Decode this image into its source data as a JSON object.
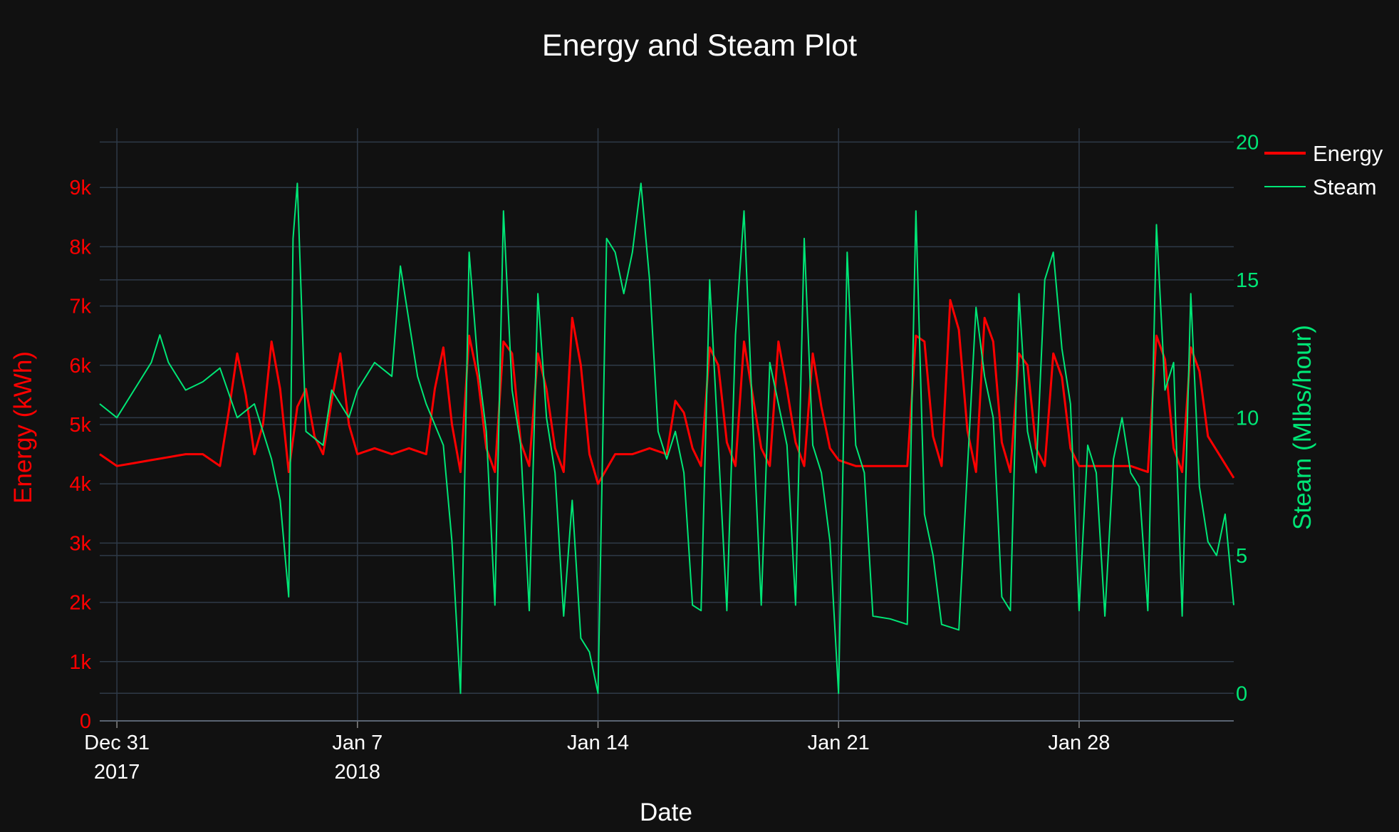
{
  "chart_data": {
    "type": "line",
    "title": "Energy and Steam Plot",
    "xlabel": "Date",
    "ylabel_left": "Energy (kWh)",
    "ylabel_right": "Steam (Mlbs/hour)",
    "x_ticks": [
      {
        "date": "2017-12-31",
        "label": "Dec 31",
        "sublabel": "2017"
      },
      {
        "date": "2018-01-07",
        "label": "Jan 7",
        "sublabel": "2018"
      },
      {
        "date": "2018-01-14",
        "label": "Jan 14",
        "sublabel": ""
      },
      {
        "date": "2018-01-21",
        "label": "Jan 21",
        "sublabel": ""
      },
      {
        "date": "2018-01-28",
        "label": "Jan 28",
        "sublabel": ""
      }
    ],
    "x_range": [
      "2017-12-30T12:00",
      "2018-02-01T12:00"
    ],
    "y_left_range": [
      0,
      10000
    ],
    "y_left_ticks": [
      {
        "value": 0,
        "label": "0"
      },
      {
        "value": 1000,
        "label": "1k"
      },
      {
        "value": 2000,
        "label": "2k"
      },
      {
        "value": 3000,
        "label": "3k"
      },
      {
        "value": 4000,
        "label": "4k"
      },
      {
        "value": 5000,
        "label": "5k"
      },
      {
        "value": 6000,
        "label": "6k"
      },
      {
        "value": 7000,
        "label": "7k"
      },
      {
        "value": 8000,
        "label": "8k"
      },
      {
        "value": 9000,
        "label": "9k"
      }
    ],
    "y_right_range": [
      -1,
      20.5
    ],
    "y_right_ticks": [
      {
        "value": 0,
        "label": "0"
      },
      {
        "value": 5,
        "label": "5"
      },
      {
        "value": 10,
        "label": "10"
      },
      {
        "value": 15,
        "label": "15"
      },
      {
        "value": 20,
        "label": "20"
      }
    ],
    "grid": true,
    "legend_position": "top-right",
    "series": [
      {
        "name": "Energy",
        "axis": "left",
        "color": "#ff0000",
        "points": [
          [
            "2017-12-30T12:00",
            4500
          ],
          [
            "2017-12-31T00:00",
            4300
          ],
          [
            "2017-12-31T12:00",
            4350
          ],
          [
            "2018-01-01T00:00",
            4400
          ],
          [
            "2018-01-01T12:00",
            4450
          ],
          [
            "2018-01-02T00:00",
            4500
          ],
          [
            "2018-01-02T12:00",
            4500
          ],
          [
            "2018-01-03T00:00",
            4300
          ],
          [
            "2018-01-03T06:00",
            5200
          ],
          [
            "2018-01-03T12:00",
            6200
          ],
          [
            "2018-01-03T18:00",
            5500
          ],
          [
            "2018-01-04T00:00",
            4500
          ],
          [
            "2018-01-04T06:00",
            5000
          ],
          [
            "2018-01-04T12:00",
            6400
          ],
          [
            "2018-01-04T18:00",
            5600
          ],
          [
            "2018-01-05T00:00",
            4200
          ],
          [
            "2018-01-05T06:00",
            5300
          ],
          [
            "2018-01-05T12:00",
            5600
          ],
          [
            "2018-01-05T18:00",
            4800
          ],
          [
            "2018-01-06T00:00",
            4500
          ],
          [
            "2018-01-06T06:00",
            5400
          ],
          [
            "2018-01-06T12:00",
            6200
          ],
          [
            "2018-01-06T18:00",
            5000
          ],
          [
            "2018-01-07T00:00",
            4500
          ],
          [
            "2018-01-07T12:00",
            4600
          ],
          [
            "2018-01-08T00:00",
            4500
          ],
          [
            "2018-01-08T12:00",
            4600
          ],
          [
            "2018-01-09T00:00",
            4500
          ],
          [
            "2018-01-09T06:00",
            5600
          ],
          [
            "2018-01-09T12:00",
            6300
          ],
          [
            "2018-01-09T18:00",
            5000
          ],
          [
            "2018-01-10T00:00",
            4200
          ],
          [
            "2018-01-10T06:00",
            6500
          ],
          [
            "2018-01-10T12:00",
            5800
          ],
          [
            "2018-01-10T18:00",
            4600
          ],
          [
            "2018-01-11T00:00",
            4200
          ],
          [
            "2018-01-11T06:00",
            6400
          ],
          [
            "2018-01-11T12:00",
            6200
          ],
          [
            "2018-01-11T18:00",
            4700
          ],
          [
            "2018-01-12T00:00",
            4300
          ],
          [
            "2018-01-12T06:00",
            6200
          ],
          [
            "2018-01-12T12:00",
            5600
          ],
          [
            "2018-01-12T18:00",
            4600
          ],
          [
            "2018-01-13T00:00",
            4200
          ],
          [
            "2018-01-13T06:00",
            6800
          ],
          [
            "2018-01-13T12:00",
            6000
          ],
          [
            "2018-01-13T18:00",
            4500
          ],
          [
            "2018-01-14T00:00",
            4000
          ],
          [
            "2018-01-14T12:00",
            4500
          ],
          [
            "2018-01-15T00:00",
            4500
          ],
          [
            "2018-01-15T12:00",
            4600
          ],
          [
            "2018-01-16T00:00",
            4500
          ],
          [
            "2018-01-16T06:00",
            5400
          ],
          [
            "2018-01-16T12:00",
            5200
          ],
          [
            "2018-01-16T18:00",
            4600
          ],
          [
            "2018-01-17T00:00",
            4300
          ],
          [
            "2018-01-17T06:00",
            6300
          ],
          [
            "2018-01-17T12:00",
            6000
          ],
          [
            "2018-01-17T18:00",
            4700
          ],
          [
            "2018-01-18T00:00",
            4300
          ],
          [
            "2018-01-18T06:00",
            6400
          ],
          [
            "2018-01-18T12:00",
            5500
          ],
          [
            "2018-01-18T18:00",
            4600
          ],
          [
            "2018-01-19T00:00",
            4300
          ],
          [
            "2018-01-19T06:00",
            6400
          ],
          [
            "2018-01-19T12:00",
            5600
          ],
          [
            "2018-01-19T18:00",
            4700
          ],
          [
            "2018-01-20T00:00",
            4300
          ],
          [
            "2018-01-20T06:00",
            6200
          ],
          [
            "2018-01-20T12:00",
            5300
          ],
          [
            "2018-01-20T18:00",
            4600
          ],
          [
            "2018-01-21T00:00",
            4400
          ],
          [
            "2018-01-21T12:00",
            4300
          ],
          [
            "2018-01-22T00:00",
            4300
          ],
          [
            "2018-01-22T12:00",
            4300
          ],
          [
            "2018-01-23T00:00",
            4300
          ],
          [
            "2018-01-23T06:00",
            6500
          ],
          [
            "2018-01-23T12:00",
            6400
          ],
          [
            "2018-01-23T18:00",
            4800
          ],
          [
            "2018-01-24T00:00",
            4300
          ],
          [
            "2018-01-24T06:00",
            7100
          ],
          [
            "2018-01-24T12:00",
            6600
          ],
          [
            "2018-01-24T18:00",
            4900
          ],
          [
            "2018-01-25T00:00",
            4200
          ],
          [
            "2018-01-25T06:00",
            6800
          ],
          [
            "2018-01-25T12:00",
            6400
          ],
          [
            "2018-01-25T18:00",
            4700
          ],
          [
            "2018-01-26T00:00",
            4200
          ],
          [
            "2018-01-26T06:00",
            6200
          ],
          [
            "2018-01-26T12:00",
            6000
          ],
          [
            "2018-01-26T18:00",
            4600
          ],
          [
            "2018-01-27T00:00",
            4300
          ],
          [
            "2018-01-27T06:00",
            6200
          ],
          [
            "2018-01-27T12:00",
            5800
          ],
          [
            "2018-01-27T18:00",
            4600
          ],
          [
            "2018-01-28T00:00",
            4300
          ],
          [
            "2018-01-28T12:00",
            4300
          ],
          [
            "2018-01-29T00:00",
            4300
          ],
          [
            "2018-01-29T12:00",
            4300
          ],
          [
            "2018-01-30T00:00",
            4200
          ],
          [
            "2018-01-30T06:00",
            6500
          ],
          [
            "2018-01-30T12:00",
            6100
          ],
          [
            "2018-01-30T18:00",
            4600
          ],
          [
            "2018-01-31T00:00",
            4200
          ],
          [
            "2018-01-31T06:00",
            6300
          ],
          [
            "2018-01-31T12:00",
            5900
          ],
          [
            "2018-01-31T18:00",
            4800
          ],
          [
            "2018-02-01T12:00",
            4100
          ]
        ]
      },
      {
        "name": "Steam",
        "axis": "right",
        "color": "#00e676",
        "points": [
          [
            "2017-12-30T12:00",
            10.5
          ],
          [
            "2017-12-31T00:00",
            10.0
          ],
          [
            "2017-12-31T12:00",
            11.0
          ],
          [
            "2018-01-01T00:00",
            12.0
          ],
          [
            "2018-01-01T06:00",
            13.0
          ],
          [
            "2018-01-01T12:00",
            12.0
          ],
          [
            "2018-01-02T00:00",
            11.0
          ],
          [
            "2018-01-02T12:00",
            11.3
          ],
          [
            "2018-01-03T00:00",
            11.8
          ],
          [
            "2018-01-03T12:00",
            10.0
          ],
          [
            "2018-01-04T00:00",
            10.5
          ],
          [
            "2018-01-04T12:00",
            8.5
          ],
          [
            "2018-01-04T18:00",
            7.0
          ],
          [
            "2018-01-05T00:00",
            3.5
          ],
          [
            "2018-01-05T03:00",
            16.5
          ],
          [
            "2018-01-05T06:00",
            18.5
          ],
          [
            "2018-01-05T12:00",
            9.5
          ],
          [
            "2018-01-06T00:00",
            9.0
          ],
          [
            "2018-01-06T06:00",
            11.0
          ],
          [
            "2018-01-06T18:00",
            10.0
          ],
          [
            "2018-01-07T00:00",
            11.0
          ],
          [
            "2018-01-07T12:00",
            12.0
          ],
          [
            "2018-01-08T00:00",
            11.5
          ],
          [
            "2018-01-08T06:00",
            15.5
          ],
          [
            "2018-01-08T18:00",
            11.5
          ],
          [
            "2018-01-09T00:00",
            10.5
          ],
          [
            "2018-01-09T12:00",
            9.0
          ],
          [
            "2018-01-09T18:00",
            5.5
          ],
          [
            "2018-01-10T00:00",
            0.0
          ],
          [
            "2018-01-10T06:00",
            16.0
          ],
          [
            "2018-01-10T12:00",
            12.0
          ],
          [
            "2018-01-10T18:00",
            9.5
          ],
          [
            "2018-01-11T00:00",
            3.2
          ],
          [
            "2018-01-11T06:00",
            17.5
          ],
          [
            "2018-01-11T12:00",
            11.0
          ],
          [
            "2018-01-11T18:00",
            9.0
          ],
          [
            "2018-01-12T00:00",
            3.0
          ],
          [
            "2018-01-12T06:00",
            14.5
          ],
          [
            "2018-01-12T12:00",
            10.0
          ],
          [
            "2018-01-12T18:00",
            8.0
          ],
          [
            "2018-01-13T00:00",
            2.8
          ],
          [
            "2018-01-13T06:00",
            7.0
          ],
          [
            "2018-01-13T12:00",
            2.0
          ],
          [
            "2018-01-13T18:00",
            1.5
          ],
          [
            "2018-01-14T00:00",
            0.0
          ],
          [
            "2018-01-14T06:00",
            16.5
          ],
          [
            "2018-01-14T12:00",
            16.0
          ],
          [
            "2018-01-14T18:00",
            14.5
          ],
          [
            "2018-01-15T00:00",
            16.0
          ],
          [
            "2018-01-15T06:00",
            18.5
          ],
          [
            "2018-01-15T12:00",
            15.0
          ],
          [
            "2018-01-15T18:00",
            9.5
          ],
          [
            "2018-01-16T00:00",
            8.5
          ],
          [
            "2018-01-16T06:00",
            9.5
          ],
          [
            "2018-01-16T12:00",
            8.0
          ],
          [
            "2018-01-16T18:00",
            3.2
          ],
          [
            "2018-01-17T00:00",
            3.0
          ],
          [
            "2018-01-17T06:00",
            15.0
          ],
          [
            "2018-01-17T12:00",
            9.0
          ],
          [
            "2018-01-17T18:00",
            3.0
          ],
          [
            "2018-01-18T00:00",
            13.0
          ],
          [
            "2018-01-18T06:00",
            17.5
          ],
          [
            "2018-01-18T12:00",
            10.0
          ],
          [
            "2018-01-18T18:00",
            3.2
          ],
          [
            "2018-01-19T00:00",
            12.0
          ],
          [
            "2018-01-19T06:00",
            10.5
          ],
          [
            "2018-01-19T12:00",
            9.0
          ],
          [
            "2018-01-19T18:00",
            3.2
          ],
          [
            "2018-01-20T00:00",
            16.5
          ],
          [
            "2018-01-20T06:00",
            9.0
          ],
          [
            "2018-01-20T12:00",
            8.0
          ],
          [
            "2018-01-20T18:00",
            5.5
          ],
          [
            "2018-01-21T00:00",
            0.0
          ],
          [
            "2018-01-21T06:00",
            16.0
          ],
          [
            "2018-01-21T12:00",
            9.0
          ],
          [
            "2018-01-21T18:00",
            8.0
          ],
          [
            "2018-01-22T00:00",
            2.8
          ],
          [
            "2018-01-22T12:00",
            2.7
          ],
          [
            "2018-01-23T00:00",
            2.5
          ],
          [
            "2018-01-23T06:00",
            17.5
          ],
          [
            "2018-01-23T12:00",
            6.5
          ],
          [
            "2018-01-23T18:00",
            5.0
          ],
          [
            "2018-01-24T00:00",
            2.5
          ],
          [
            "2018-01-24T12:00",
            2.3
          ],
          [
            "2018-01-25T00:00",
            14.0
          ],
          [
            "2018-01-25T06:00",
            11.5
          ],
          [
            "2018-01-25T12:00",
            10.0
          ],
          [
            "2018-01-25T18:00",
            3.5
          ],
          [
            "2018-01-26T00:00",
            3.0
          ],
          [
            "2018-01-26T06:00",
            14.5
          ],
          [
            "2018-01-26T12:00",
            9.5
          ],
          [
            "2018-01-26T18:00",
            8.0
          ],
          [
            "2018-01-27T00:00",
            15.0
          ],
          [
            "2018-01-27T06:00",
            16.0
          ],
          [
            "2018-01-27T12:00",
            12.5
          ],
          [
            "2018-01-27T18:00",
            10.5
          ],
          [
            "2018-01-28T00:00",
            3.0
          ],
          [
            "2018-01-28T06:00",
            9.0
          ],
          [
            "2018-01-28T12:00",
            8.0
          ],
          [
            "2018-01-28T18:00",
            2.8
          ],
          [
            "2018-01-29T00:00",
            8.5
          ],
          [
            "2018-01-29T06:00",
            10.0
          ],
          [
            "2018-01-29T12:00",
            8.0
          ],
          [
            "2018-01-29T18:00",
            7.5
          ],
          [
            "2018-01-30T00:00",
            3.0
          ],
          [
            "2018-01-30T06:00",
            17.0
          ],
          [
            "2018-01-30T12:00",
            11.0
          ],
          [
            "2018-01-30T18:00",
            12.0
          ],
          [
            "2018-01-31T00:00",
            2.8
          ],
          [
            "2018-01-31T06:00",
            14.5
          ],
          [
            "2018-01-31T12:00",
            7.5
          ],
          [
            "2018-01-31T18:00",
            5.5
          ],
          [
            "2018-02-01T00:00",
            5.0
          ],
          [
            "2018-02-01T06:00",
            6.5
          ],
          [
            "2018-02-01T12:00",
            3.2
          ]
        ]
      }
    ]
  }
}
